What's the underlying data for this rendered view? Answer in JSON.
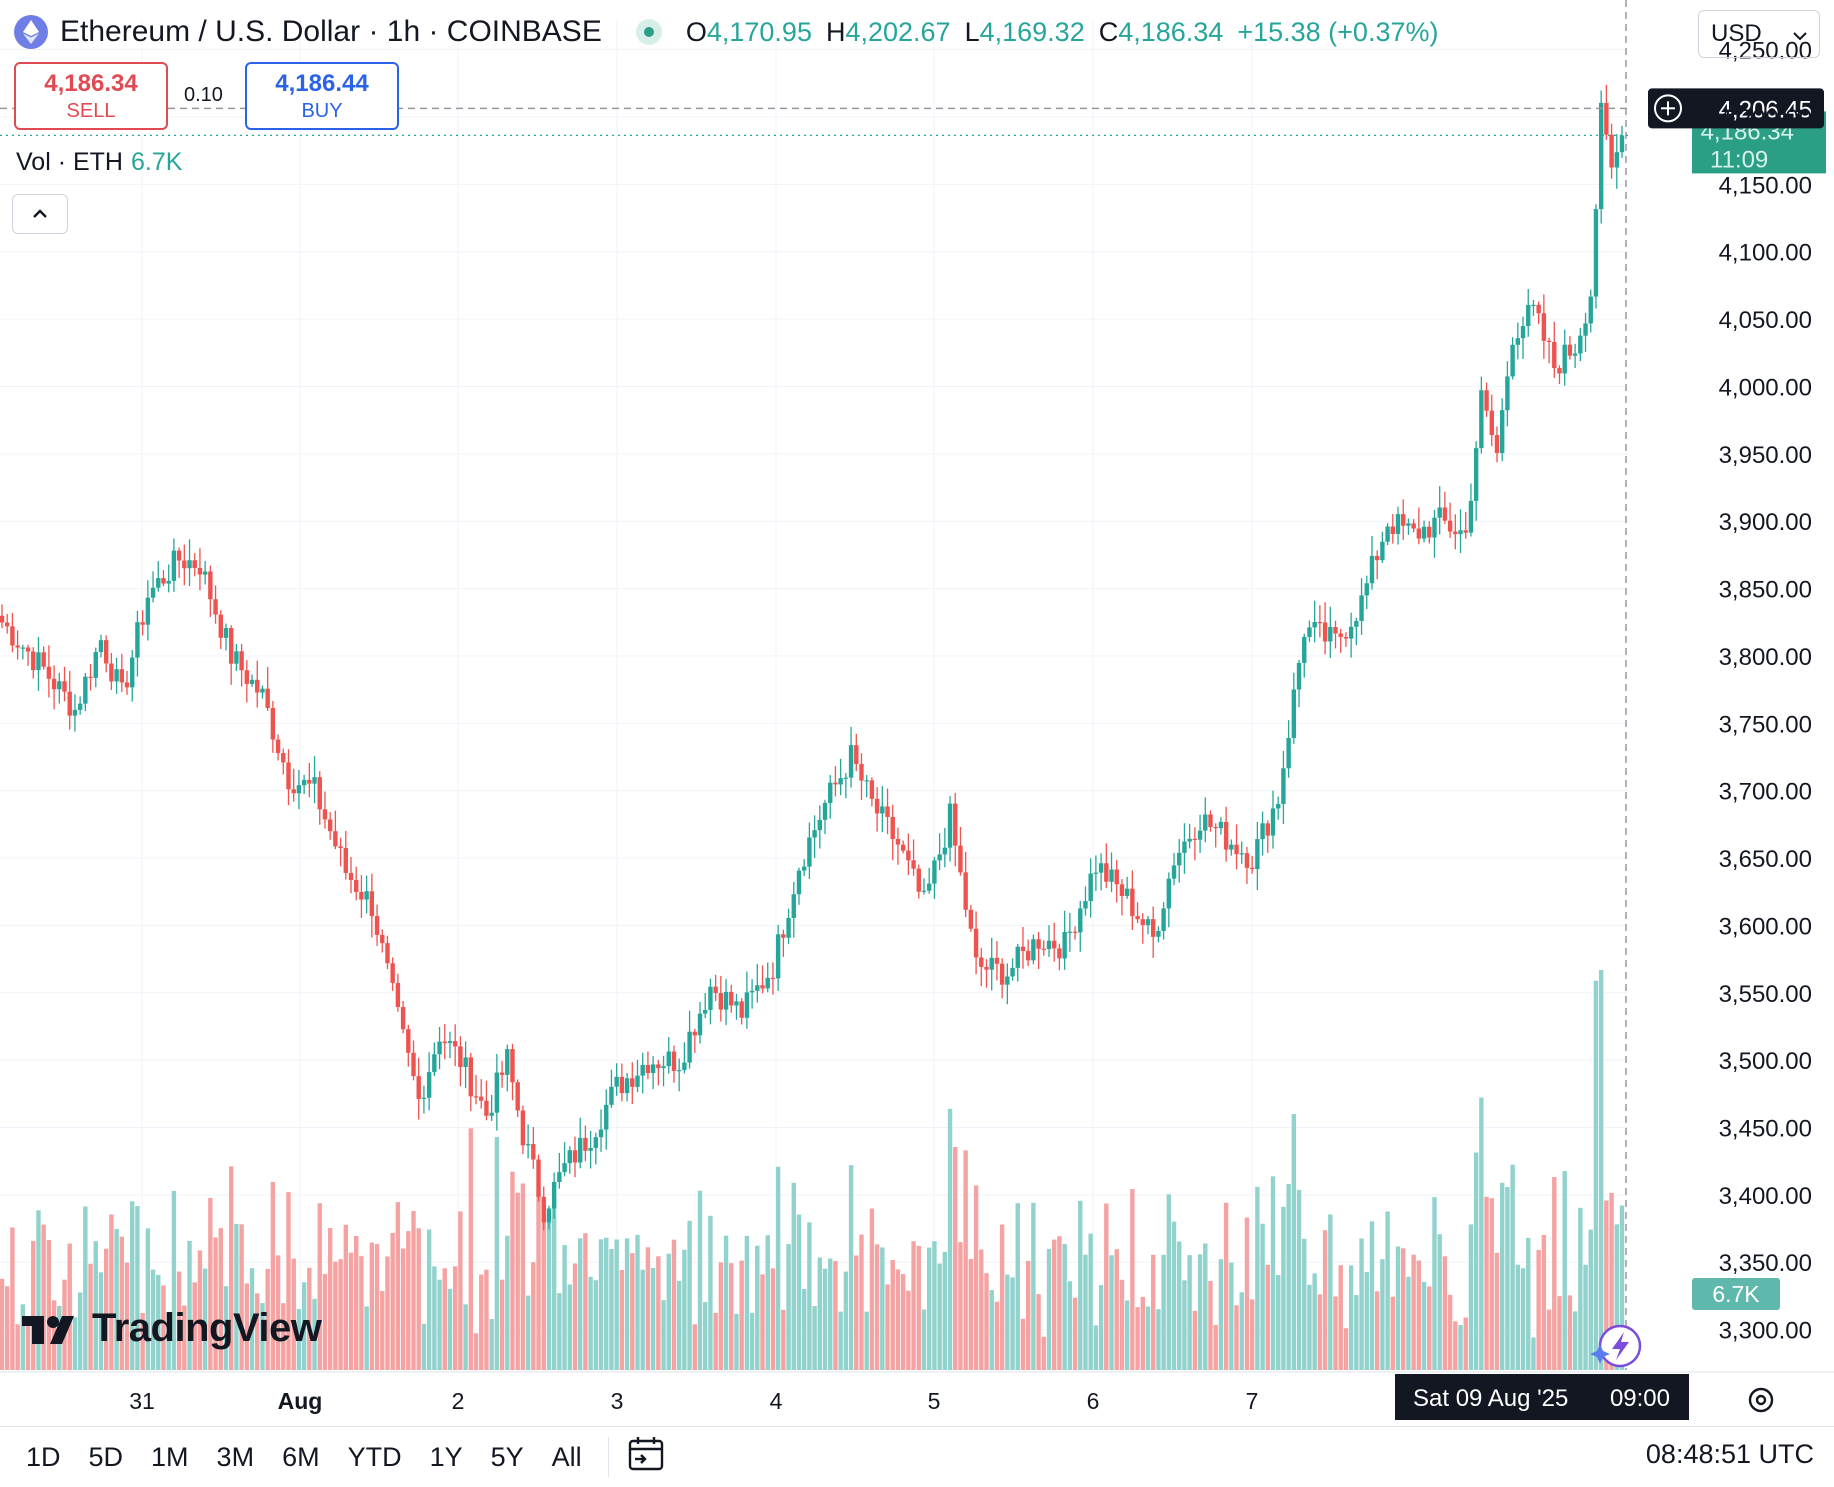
{
  "header": {
    "title": "Ethereum / U.S. Dollar · 1h · COINBASE",
    "ohlc": {
      "o_key": "O",
      "o_val": "4,170.95",
      "h_key": "H",
      "h_val": "4,202.67",
      "l_key": "L",
      "l_val": "4,169.32",
      "c_key": "C",
      "c_val": "4,186.34",
      "change": "+15.38 (+0.37%)"
    },
    "currency": "USD"
  },
  "trade": {
    "sell_price": "4,186.34",
    "sell_label": "SELL",
    "spread": "0.10",
    "buy_price": "4,186.44",
    "buy_label": "BUY"
  },
  "volume_legend": {
    "label": "Vol · ETH",
    "value": "6.7K"
  },
  "crosshair": {
    "price_label": "4,206.45",
    "date_label": "Sat 09 Aug '25",
    "time_label": "09:00"
  },
  "last_price": {
    "price": "4,186.34",
    "countdown": "11:09"
  },
  "volume_badge": "6.7K",
  "colors": {
    "up": "#26a69a",
    "down": "#ef5350",
    "up_vol": "#92d2cc",
    "down_vol": "#f5a3a2"
  },
  "logo": "TradingView",
  "time_ranges": [
    "1D",
    "5D",
    "1M",
    "3M",
    "6M",
    "YTD",
    "1Y",
    "5Y",
    "All"
  ],
  "clock": "08:48:51 UTC",
  "chart_data": {
    "type": "candlestick",
    "interval": "1h",
    "ylim": [
      3270,
      4272
    ],
    "y_ticks": [
      "4,250.00",
      "4,200.00",
      "4,150.00",
      "4,100.00",
      "4,050.00",
      "4,000.00",
      "3,950.00",
      "3,900.00",
      "3,850.00",
      "3,800.00",
      "3,750.00",
      "3,700.00",
      "3,650.00",
      "3,600.00",
      "3,550.00",
      "3,500.00",
      "3,450.00",
      "3,400.00",
      "3,350.00",
      "3,300.00"
    ],
    "x_ticks": [
      "31",
      "Aug",
      "2",
      "3",
      "4",
      "5",
      "6",
      "7"
    ],
    "close_path": [
      [
        0,
        3825
      ],
      [
        8,
        3790
      ],
      [
        14,
        3760
      ],
      [
        19,
        3812
      ],
      [
        23,
        3770
      ],
      [
        28,
        3845
      ],
      [
        34,
        3872
      ],
      [
        38,
        3868
      ],
      [
        44,
        3800
      ],
      [
        50,
        3770
      ],
      [
        55,
        3710
      ],
      [
        60,
        3700
      ],
      [
        66,
        3640
      ],
      [
        71,
        3615
      ],
      [
        76,
        3530
      ],
      [
        80,
        3470
      ],
      [
        84,
        3520
      ],
      [
        88,
        3500
      ],
      [
        93,
        3460
      ],
      [
        97,
        3500
      ],
      [
        100,
        3445
      ],
      [
        104,
        3390
      ],
      [
        108,
        3420
      ],
      [
        113,
        3445
      ],
      [
        118,
        3480
      ],
      [
        124,
        3500
      ],
      [
        130,
        3500
      ],
      [
        136,
        3555
      ],
      [
        142,
        3535
      ],
      [
        148,
        3570
      ],
      [
        153,
        3645
      ],
      [
        158,
        3690
      ],
      [
        163,
        3725
      ],
      [
        167,
        3690
      ],
      [
        172,
        3660
      ],
      [
        177,
        3615
      ],
      [
        182,
        3680
      ],
      [
        187,
        3570
      ],
      [
        193,
        3565
      ],
      [
        199,
        3590
      ],
      [
        204,
        3585
      ],
      [
        210,
        3645
      ],
      [
        216,
        3620
      ],
      [
        221,
        3590
      ],
      [
        225,
        3650
      ],
      [
        230,
        3680
      ],
      [
        235,
        3665
      ],
      [
        240,
        3650
      ],
      [
        245,
        3695
      ],
      [
        250,
        3820
      ],
      [
        256,
        3810
      ],
      [
        261,
        3840
      ],
      [
        266,
        3900
      ],
      [
        271,
        3890
      ],
      [
        276,
        3900
      ],
      [
        281,
        3890
      ],
      [
        284,
        3990
      ],
      [
        287,
        3950
      ],
      [
        290,
        4040
      ],
      [
        294,
        4055
      ],
      [
        298,
        4015
      ],
      [
        302,
        4030
      ],
      [
        305,
        4070
      ],
      [
        307,
        4200
      ],
      [
        309,
        4160
      ],
      [
        311,
        4186
      ]
    ],
    "volume_ylim": [
      0,
      3200
    ],
    "total_candles": 312
  }
}
